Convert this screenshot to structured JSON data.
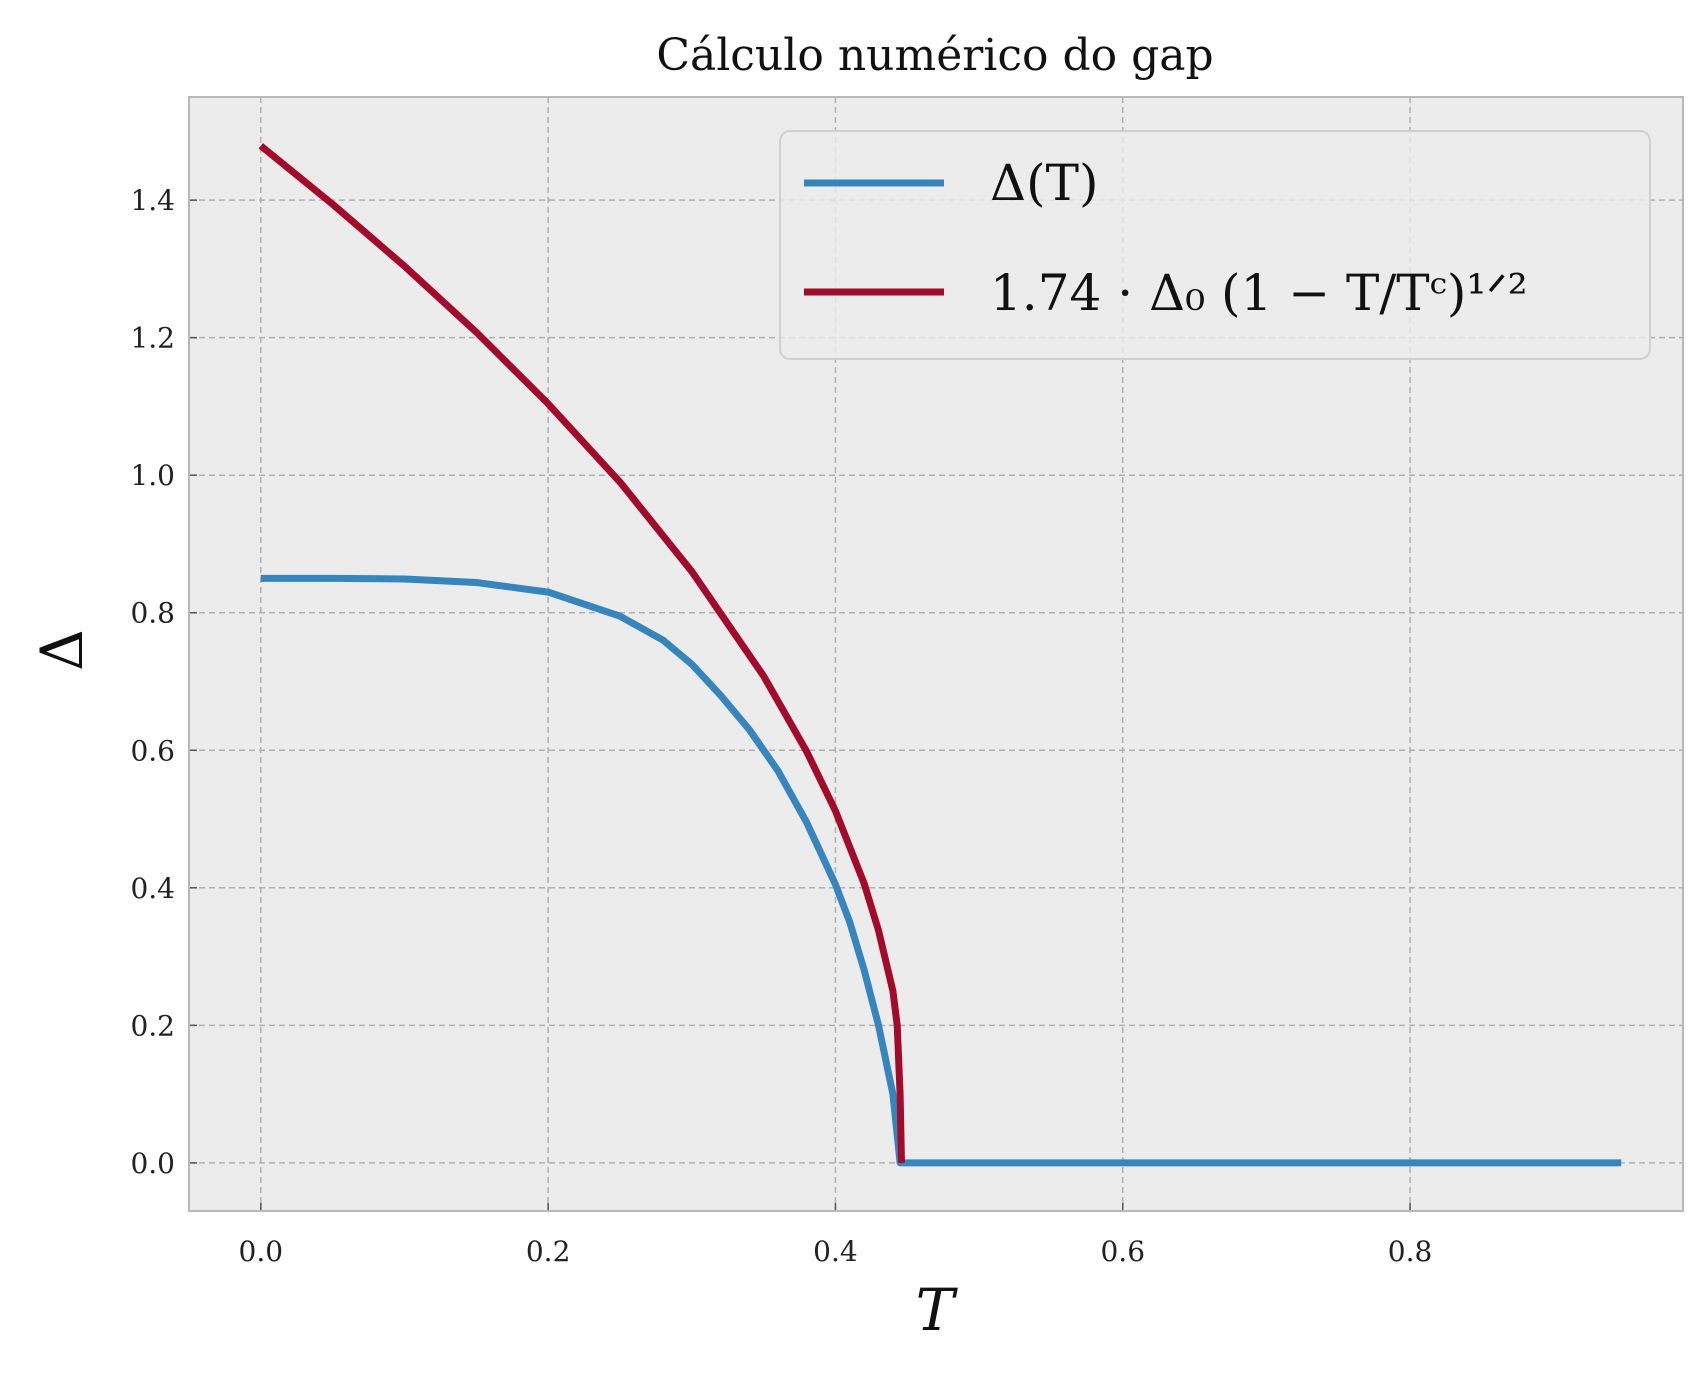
{
  "chart_data": {
    "type": "line",
    "title": "Cálculo numérico do gap",
    "xlabel": "T",
    "ylabel": "Δ",
    "xlim": [
      -0.05,
      0.99
    ],
    "ylim": [
      -0.07,
      1.55
    ],
    "xticks": [
      0.0,
      0.2,
      0.4,
      0.6,
      0.8
    ],
    "xtick_labels": [
      "0.0",
      "0.2",
      "0.4",
      "0.6",
      "0.8"
    ],
    "yticks": [
      0.0,
      0.2,
      0.4,
      0.6,
      0.8,
      1.0,
      1.2,
      1.4
    ],
    "ytick_labels": [
      "0.0",
      "0.2",
      "0.4",
      "0.6",
      "0.8",
      "1.0",
      "1.2",
      "1.4"
    ],
    "grid": true,
    "legend_position": "top-right",
    "background": "#ececec",
    "series": [
      {
        "name": "Δ(T)",
        "color": "#3685bc",
        "x": [
          0.0,
          0.05,
          0.1,
          0.15,
          0.2,
          0.25,
          0.28,
          0.3,
          0.32,
          0.34,
          0.36,
          0.38,
          0.4,
          0.41,
          0.42,
          0.43,
          0.44,
          0.445,
          0.446,
          0.5,
          0.6,
          0.7,
          0.8,
          0.9,
          0.947
        ],
        "y": [
          0.85,
          0.85,
          0.849,
          0.844,
          0.83,
          0.795,
          0.76,
          0.725,
          0.68,
          0.63,
          0.57,
          0.495,
          0.405,
          0.35,
          0.28,
          0.2,
          0.1,
          0.0,
          0.0,
          0.0,
          0.0,
          0.0,
          0.0,
          0.0,
          0.0
        ]
      },
      {
        "name": "1.74 · Δ₀ (1 − T/Tᶜ)¹ᐟ²",
        "color": "#a20b2c",
        "x": [
          0.0,
          0.05,
          0.1,
          0.15,
          0.2,
          0.25,
          0.3,
          0.35,
          0.38,
          0.4,
          0.42,
          0.43,
          0.44,
          0.443,
          0.445,
          0.446
        ],
        "y": [
          1.479,
          1.394,
          1.304,
          1.208,
          1.104,
          0.99,
          0.86,
          0.708,
          0.598,
          0.512,
          0.406,
          0.338,
          0.25,
          0.2,
          0.1,
          0.0
        ]
      }
    ]
  }
}
